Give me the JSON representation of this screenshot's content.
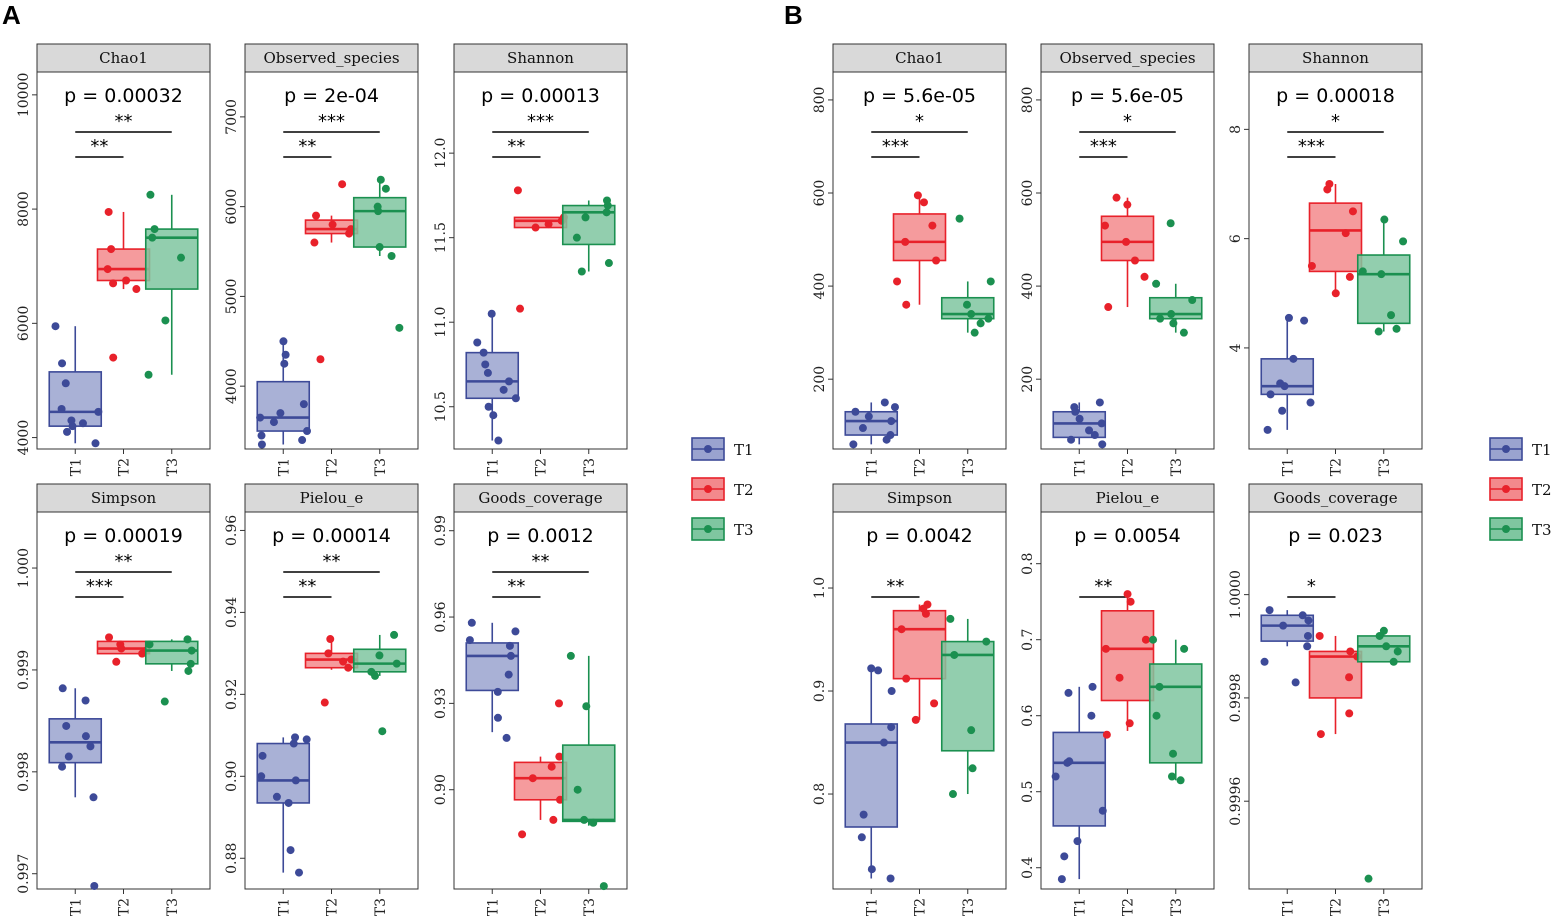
{
  "panel_labels": [
    "A",
    "B"
  ],
  "groups": [
    "T1",
    "T2",
    "T3"
  ],
  "colors": {
    "T1": "#3d4a98",
    "T2": "#e8212a",
    "T3": "#1b9050"
  },
  "fills": {
    "T1": "#9aa3cf",
    "T2": "#f3898c",
    "T3": "#7fc6a0"
  },
  "legend": {
    "items": [
      "T1",
      "T2",
      "T3"
    ]
  },
  "chart_data": [
    {
      "type": "box",
      "panel": "A",
      "title": "Chao1",
      "p_label": "p = 0.00032",
      "ylim": [
        3800,
        10400
      ],
      "yticks": [
        4000,
        6000,
        8000,
        10000
      ],
      "boxes": [
        {
          "group": "T1",
          "q1": 4200,
          "median": 4450,
          "q3": 5150,
          "wlo": 3900,
          "whi": 5950,
          "points": [
            3900,
            4100,
            4200,
            4250,
            4300,
            4450,
            4500,
            4950,
            5300,
            5950
          ]
        },
        {
          "group": "T2",
          "q1": 6750,
          "median": 6950,
          "q3": 7300,
          "wlo": 6600,
          "whi": 7950,
          "points": [
            5400,
            6600,
            6700,
            6750,
            6950,
            7300,
            7950
          ]
        },
        {
          "group": "T3",
          "q1": 6600,
          "median": 7500,
          "q3": 7650,
          "wlo": 5100,
          "whi": 8250,
          "points": [
            5100,
            6050,
            7150,
            7500,
            7650,
            8250
          ]
        }
      ],
      "comparisons": [
        {
          "from": "T1",
          "to": "T2",
          "label": "**"
        },
        {
          "from": "T1",
          "to": "T3",
          "label": "**"
        }
      ]
    },
    {
      "type": "box",
      "panel": "A",
      "title": "Observed_species",
      "p_label": "p = 2e-04",
      "ylim": [
        3300,
        7500
      ],
      "yticks": [
        4000,
        5000,
        6000,
        7000
      ],
      "boxes": [
        {
          "group": "T1",
          "q1": 3500,
          "median": 3650,
          "q3": 4050,
          "wlo": 3350,
          "whi": 4500,
          "points": [
            3350,
            3400,
            3450,
            3500,
            3600,
            3650,
            3700,
            3800,
            4250,
            4350,
            4500
          ]
        },
        {
          "group": "T2",
          "q1": 5700,
          "median": 5750,
          "q3": 5850,
          "wlo": 5600,
          "whi": 5900,
          "points": [
            4300,
            5600,
            5700,
            5750,
            5800,
            5900,
            6250
          ]
        },
        {
          "group": "T3",
          "q1": 5550,
          "median": 5950,
          "q3": 6100,
          "wlo": 5450,
          "whi": 6300,
          "points": [
            4650,
            5450,
            5550,
            5950,
            6000,
            6200,
            6300
          ]
        }
      ],
      "comparisons": [
        {
          "from": "T1",
          "to": "T2",
          "label": "**"
        },
        {
          "from": "T1",
          "to": "T3",
          "label": "***"
        }
      ]
    },
    {
      "type": "box",
      "panel": "A",
      "title": "Shannon",
      "p_label": "p = 0.00013",
      "ylim": [
        10.25,
        12.48
      ],
      "yticks": [
        10.5,
        11.0,
        11.5,
        12.0
      ],
      "ytick_labels": [
        "10.5",
        "11.0",
        "11.5",
        "12.0"
      ],
      "boxes": [
        {
          "group": "T1",
          "q1": 10.55,
          "median": 10.65,
          "q3": 10.82,
          "wlo": 10.3,
          "whi": 11.05,
          "points": [
            10.3,
            10.45,
            10.5,
            10.55,
            10.6,
            10.65,
            10.7,
            10.75,
            10.82,
            10.88,
            11.05
          ]
        },
        {
          "group": "T2",
          "q1": 11.56,
          "median": 11.6,
          "q3": 11.62,
          "wlo": 11.56,
          "whi": 11.62,
          "points": [
            11.08,
            11.56,
            11.58,
            11.6,
            11.62,
            11.78
          ]
        },
        {
          "group": "T3",
          "q1": 11.46,
          "median": 11.65,
          "q3": 11.69,
          "wlo": 11.3,
          "whi": 11.72,
          "points": [
            11.3,
            11.35,
            11.5,
            11.62,
            11.65,
            11.69,
            11.72
          ]
        }
      ],
      "comparisons": [
        {
          "from": "T1",
          "to": "T2",
          "label": "**"
        },
        {
          "from": "T1",
          "to": "T3",
          "label": "***"
        }
      ]
    },
    {
      "type": "box",
      "panel": "A",
      "title": "Simpson",
      "p_label": "p = 0.00019",
      "ylim": [
        0.99685,
        1.00055
      ],
      "yticks": [
        0.997,
        0.998,
        0.999,
        1.0
      ],
      "ytick_labels": [
        "0.997",
        "0.998",
        "0.999",
        "1.000"
      ],
      "boxes": [
        {
          "group": "T1",
          "q1": 0.99809,
          "median": 0.99829,
          "q3": 0.99852,
          "wlo": 0.99775,
          "whi": 0.99882,
          "points": [
            0.99688,
            0.99775,
            0.99805,
            0.99815,
            0.99825,
            0.99835,
            0.99845,
            0.9987,
            0.99882
          ]
        },
        {
          "group": "T2",
          "q1": 0.99916,
          "median": 0.99921,
          "q3": 0.99928,
          "wlo": 0.99916,
          "whi": 0.99928,
          "points": [
            0.99908,
            0.99916,
            0.99919,
            0.99921,
            0.99925,
            0.99932
          ]
        },
        {
          "group": "T3",
          "q1": 0.99906,
          "median": 0.99919,
          "q3": 0.99928,
          "wlo": 0.99899,
          "whi": 0.9993,
          "points": [
            0.99869,
            0.99899,
            0.99906,
            0.99919,
            0.99925,
            0.9993
          ]
        }
      ],
      "comparisons": [
        {
          "from": "T1",
          "to": "T2",
          "label": "***"
        },
        {
          "from": "T1",
          "to": "T3",
          "label": "**"
        }
      ]
    },
    {
      "type": "box",
      "panel": "A",
      "title": "Pielou_e",
      "p_label": "p = 0.00014",
      "ylim": [
        0.8725,
        0.9645
      ],
      "yticks": [
        0.88,
        0.9,
        0.92,
        0.94,
        0.96
      ],
      "ytick_labels": [
        "0.88",
        "0.90",
        "0.92",
        "0.94",
        "0.96"
      ],
      "boxes": [
        {
          "group": "T1",
          "q1": 0.8935,
          "median": 0.899,
          "q3": 0.908,
          "wlo": 0.8765,
          "whi": 0.9095,
          "points": [
            0.8765,
            0.882,
            0.8935,
            0.895,
            0.899,
            0.9,
            0.905,
            0.908,
            0.909,
            0.9095
          ]
        },
        {
          "group": "T2",
          "q1": 0.9265,
          "median": 0.9285,
          "q3": 0.93,
          "wlo": 0.926,
          "whi": 0.9335,
          "points": [
            0.918,
            0.9265,
            0.928,
            0.9285,
            0.93,
            0.9335
          ]
        },
        {
          "group": "T3",
          "q1": 0.9255,
          "median": 0.9275,
          "q3": 0.931,
          "wlo": 0.9245,
          "whi": 0.9345,
          "points": [
            0.911,
            0.9245,
            0.9255,
            0.9275,
            0.9295,
            0.9345
          ]
        }
      ],
      "comparisons": [
        {
          "from": "T1",
          "to": "T2",
          "label": "**"
        },
        {
          "from": "T1",
          "to": "T3",
          "label": "**"
        }
      ]
    },
    {
      "type": "box",
      "panel": "A",
      "title": "Goods_coverage",
      "p_label": "p = 0.0012",
      "ylim": [
        0.8655,
        0.9965
      ],
      "yticks": [
        0.9,
        0.93,
        0.96,
        0.99
      ],
      "ytick_labels": [
        "0.90",
        "0.93",
        "0.96",
        "0.99"
      ],
      "boxes": [
        {
          "group": "T1",
          "q1": 0.9345,
          "median": 0.9465,
          "q3": 0.951,
          "wlo": 0.92,
          "whi": 0.958,
          "points": [
            0.918,
            0.925,
            0.934,
            0.94,
            0.9465,
            0.95,
            0.952,
            0.955,
            0.958
          ]
        },
        {
          "group": "T2",
          "q1": 0.8965,
          "median": 0.904,
          "q3": 0.9095,
          "wlo": 0.8895,
          "whi": 0.9115,
          "points": [
            0.8845,
            0.8895,
            0.8965,
            0.904,
            0.908,
            0.9115,
            0.93
          ]
        },
        {
          "group": "T3",
          "q1": 0.889,
          "median": 0.8895,
          "q3": 0.9155,
          "wlo": 0.8875,
          "whi": 0.9465,
          "points": [
            0.8665,
            0.8885,
            0.8895,
            0.9,
            0.929,
            0.9465
          ]
        }
      ],
      "comparisons": [
        {
          "from": "T1",
          "to": "T2",
          "label": "**"
        },
        {
          "from": "T1",
          "to": "T3",
          "label": "**"
        }
      ]
    },
    {
      "type": "box",
      "panel": "B",
      "title": "Chao1",
      "p_label": "p = 5.6e-05",
      "ylim": [
        50,
        860
      ],
      "yticks": [
        200,
        400,
        600,
        800
      ],
      "boxes": [
        {
          "group": "T1",
          "q1": 80,
          "median": 110,
          "q3": 130,
          "wlo": 60,
          "whi": 150,
          "points": [
            60,
            70,
            80,
            95,
            110,
            120,
            130,
            140,
            150
          ]
        },
        {
          "group": "T2",
          "q1": 455,
          "median": 495,
          "q3": 555,
          "wlo": 360,
          "whi": 595,
          "points": [
            360,
            410,
            455,
            495,
            530,
            580,
            595
          ]
        },
        {
          "group": "T3",
          "q1": 330,
          "median": 340,
          "q3": 375,
          "wlo": 300,
          "whi": 410,
          "points": [
            300,
            320,
            330,
            340,
            360,
            410,
            545
          ]
        }
      ],
      "comparisons": [
        {
          "from": "T1",
          "to": "T2",
          "label": "***"
        },
        {
          "from": "T1",
          "to": "T3",
          "label": "*"
        }
      ]
    },
    {
      "type": "box",
      "panel": "B",
      "title": "Observed_species",
      "p_label": "p = 5.6e-05",
      "ylim": [
        50,
        860
      ],
      "yticks": [
        200,
        400,
        600,
        800
      ],
      "boxes": [
        {
          "group": "T1",
          "q1": 75,
          "median": 105,
          "q3": 130,
          "wlo": 60,
          "whi": 150,
          "points": [
            60,
            70,
            80,
            90,
            105,
            115,
            130,
            140,
            150
          ]
        },
        {
          "group": "T2",
          "q1": 455,
          "median": 495,
          "q3": 550,
          "wlo": 355,
          "whi": 590,
          "points": [
            355,
            420,
            455,
            495,
            530,
            575,
            590
          ]
        },
        {
          "group": "T3",
          "q1": 330,
          "median": 340,
          "q3": 375,
          "wlo": 300,
          "whi": 405,
          "points": [
            300,
            320,
            330,
            340,
            370,
            405,
            535
          ]
        }
      ],
      "comparisons": [
        {
          "from": "T1",
          "to": "T2",
          "label": "***"
        },
        {
          "from": "T1",
          "to": "T3",
          "label": "*"
        }
      ]
    },
    {
      "type": "box",
      "panel": "B",
      "title": "Shannon",
      "p_label": "p = 0.00018",
      "ylim": [
        2.15,
        9.05
      ],
      "yticks": [
        4,
        6,
        8
      ],
      "boxes": [
        {
          "group": "T1",
          "q1": 3.15,
          "median": 3.3,
          "q3": 3.8,
          "wlo": 2.5,
          "whi": 4.55,
          "points": [
            2.5,
            2.85,
            3.0,
            3.15,
            3.3,
            3.35,
            3.8,
            4.5,
            4.55
          ]
        },
        {
          "group": "T2",
          "q1": 5.4,
          "median": 6.15,
          "q3": 6.65,
          "wlo": 5.0,
          "whi": 7.0,
          "points": [
            5.0,
            5.3,
            5.5,
            6.1,
            6.5,
            6.9,
            7.0
          ]
        },
        {
          "group": "T3",
          "q1": 4.45,
          "median": 5.35,
          "q3": 5.7,
          "wlo": 4.3,
          "whi": 6.3,
          "points": [
            4.3,
            4.35,
            4.6,
            5.35,
            5.4,
            5.95,
            6.35
          ]
        }
      ],
      "comparisons": [
        {
          "from": "T1",
          "to": "T2",
          "label": "***"
        },
        {
          "from": "T1",
          "to": "T3",
          "label": "*"
        }
      ]
    },
    {
      "type": "box",
      "panel": "B",
      "title": "Simpson",
      "p_label": "p = 0.0042",
      "ylim": [
        0.7078,
        1.0738
      ],
      "yticks": [
        0.8,
        0.9,
        1.0
      ],
      "ytick_labels": [
        "0.8",
        "0.9",
        "1.0"
      ],
      "boxes": [
        {
          "group": "T1",
          "q1": 0.768,
          "median": 0.85,
          "q3": 0.868,
          "wlo": 0.718,
          "whi": 0.922,
          "points": [
            0.718,
            0.727,
            0.758,
            0.78,
            0.85,
            0.865,
            0.9,
            0.92,
            0.922
          ]
        },
        {
          "group": "T2",
          "q1": 0.912,
          "median": 0.96,
          "q3": 0.978,
          "wlo": 0.872,
          "whi": 0.984,
          "points": [
            0.872,
            0.888,
            0.912,
            0.96,
            0.975,
            0.98,
            0.984
          ]
        },
        {
          "group": "T3",
          "q1": 0.842,
          "median": 0.935,
          "q3": 0.948,
          "wlo": 0.8,
          "whi": 0.97,
          "points": [
            0.8,
            0.825,
            0.862,
            0.935,
            0.948,
            0.97
          ]
        }
      ],
      "comparisons": [
        {
          "from": "T1",
          "to": "T2",
          "label": "**"
        }
      ]
    },
    {
      "type": "box",
      "panel": "B",
      "title": "Pielou_e",
      "p_label": "p = 0.0054",
      "ylim": [
        0.372,
        0.868
      ],
      "yticks": [
        0.4,
        0.5,
        0.6,
        0.7,
        0.8
      ],
      "ytick_labels": [
        "0.4",
        "0.5",
        "0.6",
        "0.7",
        "0.8"
      ],
      "boxes": [
        {
          "group": "T1",
          "q1": 0.455,
          "median": 0.538,
          "q3": 0.578,
          "wlo": 0.385,
          "whi": 0.638,
          "points": [
            0.385,
            0.415,
            0.435,
            0.475,
            0.52,
            0.538,
            0.54,
            0.6,
            0.63,
            0.638
          ]
        },
        {
          "group": "T2",
          "q1": 0.62,
          "median": 0.688,
          "q3": 0.738,
          "wlo": 0.58,
          "whi": 0.76,
          "points": [
            0.575,
            0.59,
            0.65,
            0.688,
            0.7,
            0.75,
            0.76
          ]
        },
        {
          "group": "T3",
          "q1": 0.538,
          "median": 0.638,
          "q3": 0.668,
          "wlo": 0.515,
          "whi": 0.7,
          "points": [
            0.515,
            0.52,
            0.55,
            0.6,
            0.638,
            0.688,
            0.7
          ]
        }
      ],
      "comparisons": [
        {
          "from": "T1",
          "to": "T2",
          "label": "**"
        }
      ]
    },
    {
      "type": "box",
      "panel": "B",
      "title": "Goods_coverage",
      "p_label": "p = 0.023",
      "ylim": [
        0.99943,
        1.00016
      ],
      "yticks": [
        0.9996,
        0.9998,
        1.0
      ],
      "ytick_labels": [
        "0.9996",
        "0.9998",
        "1.0000"
      ],
      "boxes": [
        {
          "group": "T1",
          "q1": 0.99991,
          "median": 0.99994,
          "q3": 0.99996,
          "wlo": 0.9999,
          "whi": 0.99997,
          "points": [
            0.99983,
            0.99987,
            0.9999,
            0.99992,
            0.99994,
            0.99995,
            0.99996,
            0.99997
          ]
        },
        {
          "group": "T2",
          "q1": 0.9998,
          "median": 0.99988,
          "q3": 0.99989,
          "wlo": 0.99973,
          "whi": 0.99992,
          "points": [
            0.99973,
            0.99977,
            0.99984,
            0.99988,
            0.99989,
            0.99992
          ]
        },
        {
          "group": "T3",
          "q1": 0.99987,
          "median": 0.9999,
          "q3": 0.99992,
          "wlo": 0.99987,
          "whi": 0.99993,
          "points": [
            0.99945,
            0.99987,
            0.99989,
            0.9999,
            0.99992,
            0.99993
          ]
        }
      ],
      "comparisons": [
        {
          "from": "T1",
          "to": "T2",
          "label": "*"
        }
      ]
    }
  ]
}
